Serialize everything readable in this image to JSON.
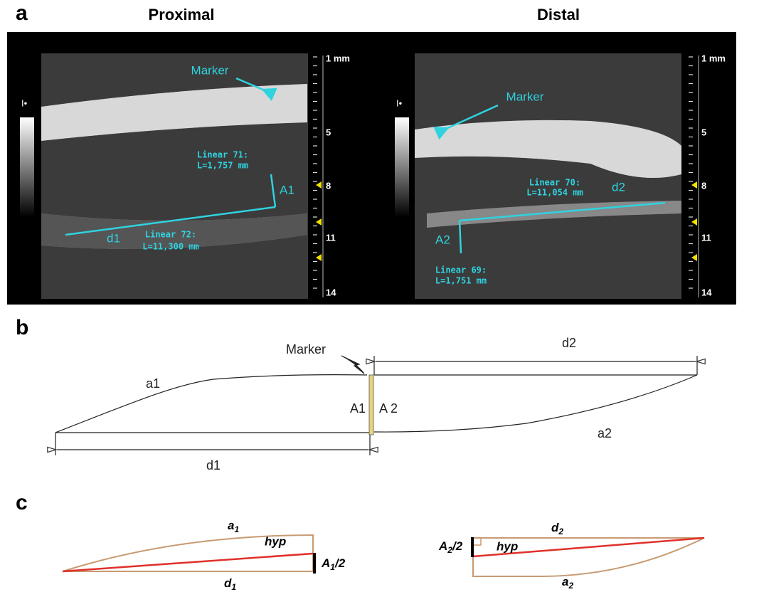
{
  "panel_a": {
    "label": "a",
    "proximal": {
      "title": "Proximal",
      "marker": "Marker",
      "a_label": "A1",
      "d_label": "d1",
      "linear_a": [
        "Linear 71:",
        "L=1,757 mm"
      ],
      "linear_d": [
        "Linear 72:",
        "L=11,300 mm"
      ],
      "scale": [
        "1 mm",
        "5",
        "8",
        "11",
        "14"
      ]
    },
    "distal": {
      "title": "Distal",
      "marker": "Marker",
      "a_label": "A2",
      "d_label": "d2",
      "linear_a": [
        "Linear 69:",
        "L=1,751 mm"
      ],
      "linear_d": [
        "Linear 70:",
        "L=11,054 mm"
      ],
      "scale": [
        "1 mm",
        "5",
        "8",
        "11",
        "14"
      ]
    }
  },
  "panel_b": {
    "label": "b",
    "marker": "Marker",
    "d2": "d2",
    "a1": "a1",
    "A1": "A1",
    "A2": "A 2",
    "a2": "a2",
    "d1": "d1"
  },
  "panel_c": {
    "label": "c",
    "left": {
      "a": {
        "base": "a",
        "sub": "1"
      },
      "hyp": "hyp",
      "A": {
        "base": "A",
        "sub": "1",
        "suffix": "/2"
      },
      "d": {
        "base": "d",
        "sub": "1"
      }
    },
    "right": {
      "d": {
        "base": "d",
        "sub": "2"
      },
      "hyp": "hyp",
      "A": {
        "base": "A",
        "sub": "2",
        "suffix": "/2"
      },
      "a": {
        "base": "a",
        "sub": "2"
      }
    }
  }
}
